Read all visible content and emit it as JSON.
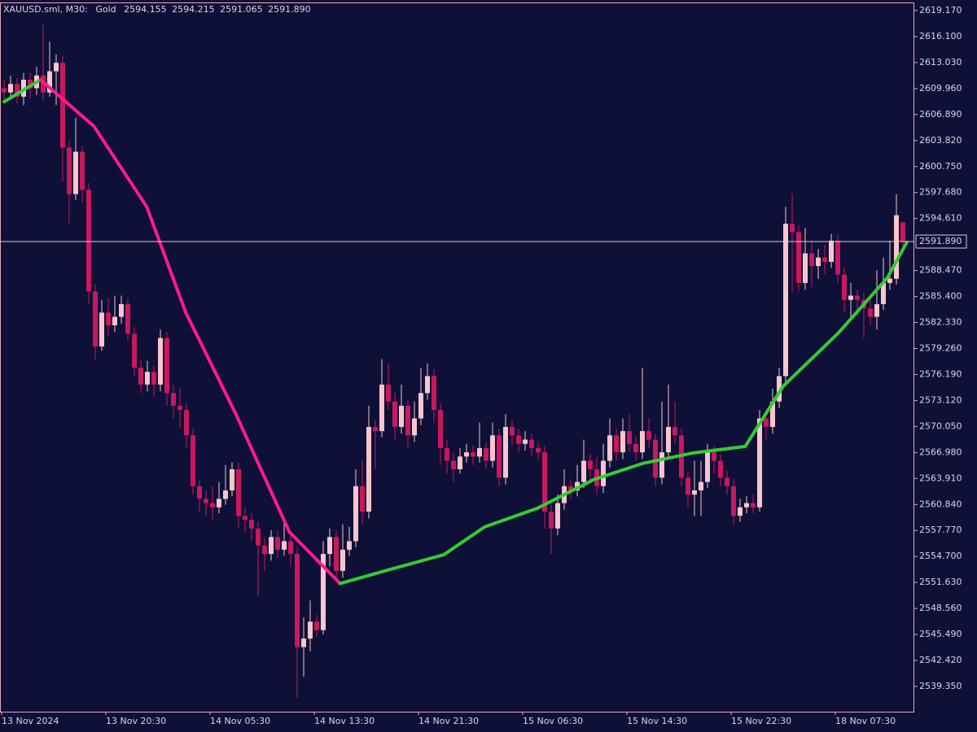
{
  "chart_data": {
    "type": "candlestick",
    "symbol": "XAUUSD.sml, M30:",
    "description": "Gold",
    "header_ohlc": [
      {
        "value": 2594.155,
        "label": "2594.155"
      },
      {
        "value": 2594.215,
        "label": "2594.215"
      },
      {
        "value": 2591.065,
        "label": "2591.065"
      },
      {
        "value": 2591.89,
        "label": "2591.890"
      }
    ],
    "last_price": {
      "value": 2591.89,
      "label": "2591.890"
    },
    "bull_color": "#f7c6cc",
    "bear_color": "#c8185f",
    "ylim": [
      2536.37,
      2620.13
    ],
    "yticks": [
      {
        "value": 2539.35,
        "label": "2539.350"
      },
      {
        "value": 2542.42,
        "label": "2542.420"
      },
      {
        "value": 2545.49,
        "label": "2545.490"
      },
      {
        "value": 2548.56,
        "label": "2548.560"
      },
      {
        "value": 2551.63,
        "label": "2551.630"
      },
      {
        "value": 2554.7,
        "label": "2554.700"
      },
      {
        "value": 2557.77,
        "label": "2557.770"
      },
      {
        "value": 2560.84,
        "label": "2560.840"
      },
      {
        "value": 2563.91,
        "label": "2563.910"
      },
      {
        "value": 2566.98,
        "label": "2566.980"
      },
      {
        "value": 2570.05,
        "label": "2570.050"
      },
      {
        "value": 2573.12,
        "label": "2573.120"
      },
      {
        "value": 2576.19,
        "label": "2576.190"
      },
      {
        "value": 2579.26,
        "label": "2579.260"
      },
      {
        "value": 2582.33,
        "label": "2582.330"
      },
      {
        "value": 2585.4,
        "label": "2585.400"
      },
      {
        "value": 2588.47,
        "label": "2588.470"
      },
      {
        "value": 2594.61,
        "label": "2594.610"
      },
      {
        "value": 2597.68,
        "label": "2597.680"
      },
      {
        "value": 2600.75,
        "label": "2600.750"
      },
      {
        "value": 2603.82,
        "label": "2603.820"
      },
      {
        "value": 2606.89,
        "label": "2606.890"
      },
      {
        "value": 2609.96,
        "label": "2609.960"
      },
      {
        "value": 2613.03,
        "label": "2613.030"
      },
      {
        "value": 2616.1,
        "label": "2616.100"
      },
      {
        "value": 2619.17,
        "label": "2619.170"
      }
    ],
    "categories": [
      "13 Nov 2024",
      null,
      null,
      null,
      null,
      null,
      null,
      null,
      null,
      null,
      null,
      null,
      null,
      null,
      null,
      null,
      "13 Nov 20:30",
      null,
      null,
      null,
      null,
      null,
      null,
      null,
      null,
      null,
      null,
      null,
      null,
      null,
      null,
      null,
      "14 Nov 05:30",
      null,
      null,
      null,
      null,
      null,
      null,
      null,
      null,
      null,
      null,
      null,
      null,
      null,
      null,
      null,
      "14 Nov 13:30",
      null,
      null,
      null,
      null,
      null,
      null,
      null,
      null,
      null,
      null,
      null,
      null,
      null,
      null,
      null,
      "14 Nov 21:30",
      null,
      null,
      null,
      null,
      null,
      null,
      null,
      null,
      null,
      null,
      null,
      null,
      null,
      null,
      null,
      "15 Nov 06:30",
      null,
      null,
      null,
      null,
      null,
      null,
      null,
      null,
      null,
      null,
      null,
      null,
      null,
      null,
      null,
      "15 Nov 14:30",
      null,
      null,
      null,
      null,
      null,
      null,
      null,
      null,
      null,
      null,
      null,
      null,
      null,
      null,
      null,
      "15 Nov 22:30",
      null,
      null,
      null,
      null,
      null,
      null,
      null,
      null,
      null,
      null,
      null,
      null,
      null,
      null,
      null,
      "18 Nov 07:30",
      null,
      null,
      null,
      null,
      null,
      null,
      null,
      null,
      null,
      null
    ],
    "ohlc": [
      [
        2610.0,
        2611.0,
        2608.5,
        2609.5
      ],
      [
        2609.5,
        2611.5,
        2608.8,
        2610.5
      ],
      [
        2610.5,
        2611.2,
        2608.2,
        2609.0
      ],
      [
        2609.0,
        2611.8,
        2608.0,
        2611.0
      ],
      [
        2611.0,
        2611.8,
        2608.8,
        2610.0
      ],
      [
        2610.0,
        2612.5,
        2609.2,
        2611.5
      ],
      [
        2611.5,
        2617.5,
        2608.5,
        2609.5
      ],
      [
        2609.5,
        2615.5,
        2609.0,
        2612.0
      ],
      [
        2612.0,
        2614.0,
        2608.0,
        2613.0
      ],
      [
        2613.0,
        2613.8,
        2599.0,
        2603.0
      ],
      [
        2603.0,
        2603.8,
        2594.0,
        2597.5
      ],
      [
        2597.5,
        2606.5,
        2596.8,
        2602.5
      ],
      [
        2602.5,
        2603.2,
        2596.5,
        2598.0
      ],
      [
        2598.0,
        2598.8,
        2584.5,
        2586.0
      ],
      [
        2586.0,
        2586.8,
        2578.0,
        2579.5
      ],
      [
        2579.5,
        2585.0,
        2579.0,
        2583.5
      ],
      [
        2583.5,
        2585.2,
        2580.8,
        2582.0
      ],
      [
        2582.0,
        2585.5,
        2581.2,
        2583.0
      ],
      [
        2583.0,
        2585.5,
        2582.2,
        2584.5
      ],
      [
        2584.5,
        2585.2,
        2580.2,
        2581.0
      ],
      [
        2581.0,
        2581.8,
        2576.0,
        2577.0
      ],
      [
        2577.0,
        2578.0,
        2574.0,
        2575.0
      ],
      [
        2575.0,
        2577.8,
        2574.2,
        2576.5
      ],
      [
        2576.5,
        2577.2,
        2573.5,
        2575.0
      ],
      [
        2575.0,
        2581.5,
        2574.2,
        2580.5
      ],
      [
        2580.5,
        2581.2,
        2572.5,
        2574.0
      ],
      [
        2574.0,
        2575.0,
        2571.0,
        2572.5
      ],
      [
        2572.5,
        2574.5,
        2570.0,
        2572.0
      ],
      [
        2572.0,
        2572.8,
        2567.5,
        2569.0
      ],
      [
        2569.0,
        2569.8,
        2562.0,
        2563.0
      ],
      [
        2563.0,
        2563.8,
        2560.0,
        2561.5
      ],
      [
        2561.5,
        2562.5,
        2559.5,
        2561.0
      ],
      [
        2561.0,
        2563.0,
        2559.0,
        2560.5
      ],
      [
        2560.5,
        2563.5,
        2559.8,
        2561.5
      ],
      [
        2561.5,
        2565.5,
        2560.8,
        2562.5
      ],
      [
        2562.5,
        2565.8,
        2561.8,
        2565.0
      ],
      [
        2565.0,
        2565.8,
        2558.0,
        2559.5
      ],
      [
        2559.5,
        2560.5,
        2557.5,
        2559.0
      ],
      [
        2559.0,
        2559.8,
        2556.5,
        2558.0
      ],
      [
        2558.0,
        2558.8,
        2550.0,
        2556.0
      ],
      [
        2556.0,
        2557.0,
        2553.0,
        2555.0
      ],
      [
        2555.0,
        2557.8,
        2554.2,
        2557.0
      ],
      [
        2557.0,
        2557.8,
        2554.5,
        2555.5
      ],
      [
        2555.5,
        2559.0,
        2554.8,
        2556.5
      ],
      [
        2556.5,
        2557.2,
        2553.5,
        2555.0
      ],
      [
        2555.0,
        2555.8,
        2538.0,
        2544.0
      ],
      [
        2544.0,
        2547.5,
        2540.5,
        2545.0
      ],
      [
        2545.0,
        2549.5,
        2543.5,
        2547.0
      ],
      [
        2547.0,
        2547.8,
        2545.2,
        2546.0
      ],
      [
        2546.0,
        2556.5,
        2545.5,
        2555.0
      ],
      [
        2555.0,
        2558.0,
        2553.5,
        2557.0
      ],
      [
        2557.0,
        2557.8,
        2552.0,
        2553.0
      ],
      [
        2553.0,
        2558.5,
        2552.2,
        2555.5
      ],
      [
        2555.5,
        2558.2,
        2554.8,
        2556.5
      ],
      [
        2556.5,
        2565.0,
        2555.8,
        2563.0
      ],
      [
        2563.0,
        2566.0,
        2558.5,
        2560.0
      ],
      [
        2560.0,
        2572.5,
        2559.2,
        2570.0
      ],
      [
        2570.0,
        2570.8,
        2565.0,
        2569.5
      ],
      [
        2569.5,
        2578.0,
        2568.8,
        2575.0
      ],
      [
        2575.0,
        2577.5,
        2572.0,
        2573.0
      ],
      [
        2573.0,
        2574.0,
        2568.5,
        2570.0
      ],
      [
        2570.0,
        2575.0,
        2569.2,
        2572.5
      ],
      [
        2572.5,
        2573.2,
        2567.5,
        2569.0
      ],
      [
        2569.0,
        2573.0,
        2568.2,
        2571.0
      ],
      [
        2571.0,
        2577.0,
        2570.2,
        2574.0
      ],
      [
        2574.0,
        2577.5,
        2573.2,
        2576.0
      ],
      [
        2576.0,
        2576.8,
        2570.5,
        2572.0
      ],
      [
        2572.0,
        2572.8,
        2565.5,
        2567.5
      ],
      [
        2567.5,
        2568.5,
        2564.5,
        2566.0
      ],
      [
        2566.0,
        2567.0,
        2563.5,
        2565.0
      ],
      [
        2565.0,
        2567.5,
        2564.5,
        2566.5
      ],
      [
        2566.5,
        2568.0,
        2565.8,
        2567.0
      ],
      [
        2567.0,
        2567.8,
        2565.5,
        2566.5
      ],
      [
        2566.5,
        2570.5,
        2565.8,
        2567.5
      ],
      [
        2567.5,
        2568.2,
        2565.0,
        2566.0
      ],
      [
        2566.0,
        2570.5,
        2565.2,
        2569.0
      ],
      [
        2569.0,
        2569.8,
        2563.0,
        2564.0
      ],
      [
        2564.0,
        2571.5,
        2563.2,
        2570.0
      ],
      [
        2570.0,
        2570.8,
        2567.8,
        2569.0
      ],
      [
        2569.0,
        2569.8,
        2567.0,
        2568.0
      ],
      [
        2568.0,
        2569.5,
        2567.2,
        2568.5
      ],
      [
        2568.5,
        2569.2,
        2566.5,
        2567.5
      ],
      [
        2567.5,
        2568.2,
        2566.2,
        2567.0
      ],
      [
        2567.0,
        2567.8,
        2558.0,
        2560.0
      ],
      [
        2560.0,
        2560.8,
        2555.0,
        2558.0
      ],
      [
        2558.0,
        2562.0,
        2557.2,
        2561.0
      ],
      [
        2561.0,
        2565.0,
        2560.2,
        2563.0
      ],
      [
        2563.0,
        2563.8,
        2561.5,
        2562.5
      ],
      [
        2562.5,
        2565.5,
        2561.8,
        2563.5
      ],
      [
        2563.5,
        2568.5,
        2562.8,
        2566.0
      ],
      [
        2566.0,
        2566.8,
        2563.5,
        2565.0
      ],
      [
        2565.0,
        2566.5,
        2562.0,
        2563.0
      ],
      [
        2563.0,
        2568.0,
        2562.2,
        2566.0
      ],
      [
        2566.0,
        2571.0,
        2565.2,
        2569.0
      ],
      [
        2569.0,
        2569.8,
        2566.0,
        2567.0
      ],
      [
        2567.0,
        2571.0,
        2566.2,
        2569.5
      ],
      [
        2569.5,
        2571.5,
        2567.0,
        2568.0
      ],
      [
        2568.0,
        2568.8,
        2566.0,
        2567.0
      ],
      [
        2567.0,
        2577.0,
        2566.2,
        2569.5
      ],
      [
        2569.5,
        2571.0,
        2567.5,
        2568.5
      ],
      [
        2568.5,
        2569.2,
        2563.0,
        2564.0
      ],
      [
        2564.0,
        2573.0,
        2563.2,
        2567.0
      ],
      [
        2567.0,
        2575.0,
        2566.2,
        2570.0
      ],
      [
        2570.0,
        2573.0,
        2568.0,
        2569.0
      ],
      [
        2569.0,
        2569.8,
        2563.0,
        2564.0
      ],
      [
        2564.0,
        2564.8,
        2560.5,
        2562.0
      ],
      [
        2562.0,
        2566.0,
        2559.5,
        2562.5
      ],
      [
        2562.5,
        2566.0,
        2559.5,
        2563.5
      ],
      [
        2563.5,
        2568.0,
        2562.8,
        2567.0
      ],
      [
        2567.0,
        2567.8,
        2564.5,
        2566.0
      ],
      [
        2566.0,
        2566.8,
        2563.0,
        2564.0
      ],
      [
        2564.0,
        2564.8,
        2562.0,
        2563.0
      ],
      [
        2563.0,
        2563.8,
        2558.5,
        2559.5
      ],
      [
        2559.5,
        2561.5,
        2558.8,
        2560.5
      ],
      [
        2560.5,
        2561.8,
        2559.8,
        2561.0
      ],
      [
        2561.0,
        2562.0,
        2559.8,
        2560.5
      ],
      [
        2560.5,
        2572.0,
        2560.0,
        2571.0
      ],
      [
        2571.0,
        2571.8,
        2568.5,
        2570.0
      ],
      [
        2570.0,
        2574.5,
        2569.2,
        2573.0
      ],
      [
        2573.0,
        2577.0,
        2572.2,
        2576.0
      ],
      [
        2576.0,
        2596.0,
        2575.2,
        2594.0
      ],
      [
        2594.0,
        2597.5,
        2586.0,
        2593.0
      ],
      [
        2593.0,
        2593.8,
        2586.0,
        2587.0
      ],
      [
        2587.0,
        2593.5,
        2586.2,
        2590.5
      ],
      [
        2590.5,
        2592.0,
        2586.5,
        2589.0
      ],
      [
        2589.0,
        2591.0,
        2587.5,
        2590.0
      ],
      [
        2590.0,
        2591.5,
        2588.0,
        2589.5
      ],
      [
        2589.5,
        2592.8,
        2588.8,
        2592.0
      ],
      [
        2592.0,
        2592.8,
        2587.0,
        2588.0
      ],
      [
        2588.0,
        2588.8,
        2583.5,
        2585.0
      ],
      [
        2585.0,
        2587.0,
        2582.5,
        2585.5
      ],
      [
        2585.5,
        2586.2,
        2583.0,
        2585.0
      ],
      [
        2585.0,
        2585.8,
        2580.5,
        2584.0
      ],
      [
        2584.0,
        2585.0,
        2582.0,
        2583.0
      ],
      [
        2583.0,
        2588.5,
        2581.5,
        2584.5
      ],
      [
        2584.5,
        2590.0,
        2583.8,
        2587.0
      ],
      [
        2587.0,
        2592.0,
        2586.2,
        2587.5
      ],
      [
        2587.5,
        2597.5,
        2586.8,
        2595.0
      ],
      [
        2594.155,
        2594.215,
        2591.065,
        2591.89
      ]
    ],
    "lines": [
      {
        "color": "#33cc33",
        "x": [
          0,
          5.6
        ],
        "values": [
          2608.4,
          2611.0
        ]
      },
      {
        "color": "#ff1a8c",
        "x": [
          5.6,
          13.8,
          21.9,
          27.9,
          35.6,
          43.8,
          51.6
        ],
        "values": [
          2611.0,
          2605.5,
          2596.0,
          2583.5,
          2571.5,
          2557.6,
          2551.5
        ]
      },
      {
        "color": "#33cc33",
        "x": [
          51.6,
          59.4,
          67.5,
          73.8,
          81.9,
          90.6,
          98.1,
          105.6,
          113.8,
          119.6,
          128.1,
          135.6,
          138.6
        ],
        "values": [
          2551.5,
          2553.2,
          2554.9,
          2558.2,
          2560.4,
          2563.8,
          2565.7,
          2566.9,
          2567.7,
          2574.8,
          2581.1,
          2587.6,
          2591.8
        ]
      }
    ]
  }
}
